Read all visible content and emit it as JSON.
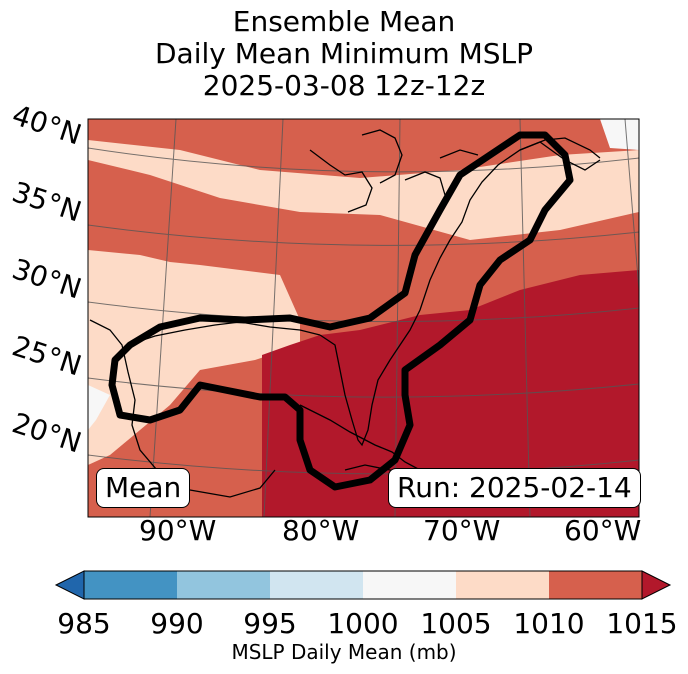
{
  "title": {
    "line1": "Ensemble Mean",
    "line2": "Daily Mean Minimum MSLP",
    "line3": "2025-03-08 12z-12z"
  },
  "map": {
    "lat_labels": [
      "40°N",
      "35°N",
      "30°N",
      "25°N",
      "20°N"
    ],
    "lon_labels": [
      "90°W",
      "80°W",
      "70°W",
      "60°W"
    ],
    "mean_label": "Mean",
    "run_label": "Run: 2025-02-14"
  },
  "colorbar": {
    "ticks": [
      "985",
      "990",
      "995",
      "1000",
      "1005",
      "1010",
      "1015"
    ],
    "colors": [
      "#2066ac",
      "#4393c3",
      "#92c5de",
      "#d1e5f0",
      "#f7f7f7",
      "#fddbc7",
      "#d6604d",
      "#b2182b"
    ],
    "label": "MSLP Daily Mean (mb)"
  }
}
